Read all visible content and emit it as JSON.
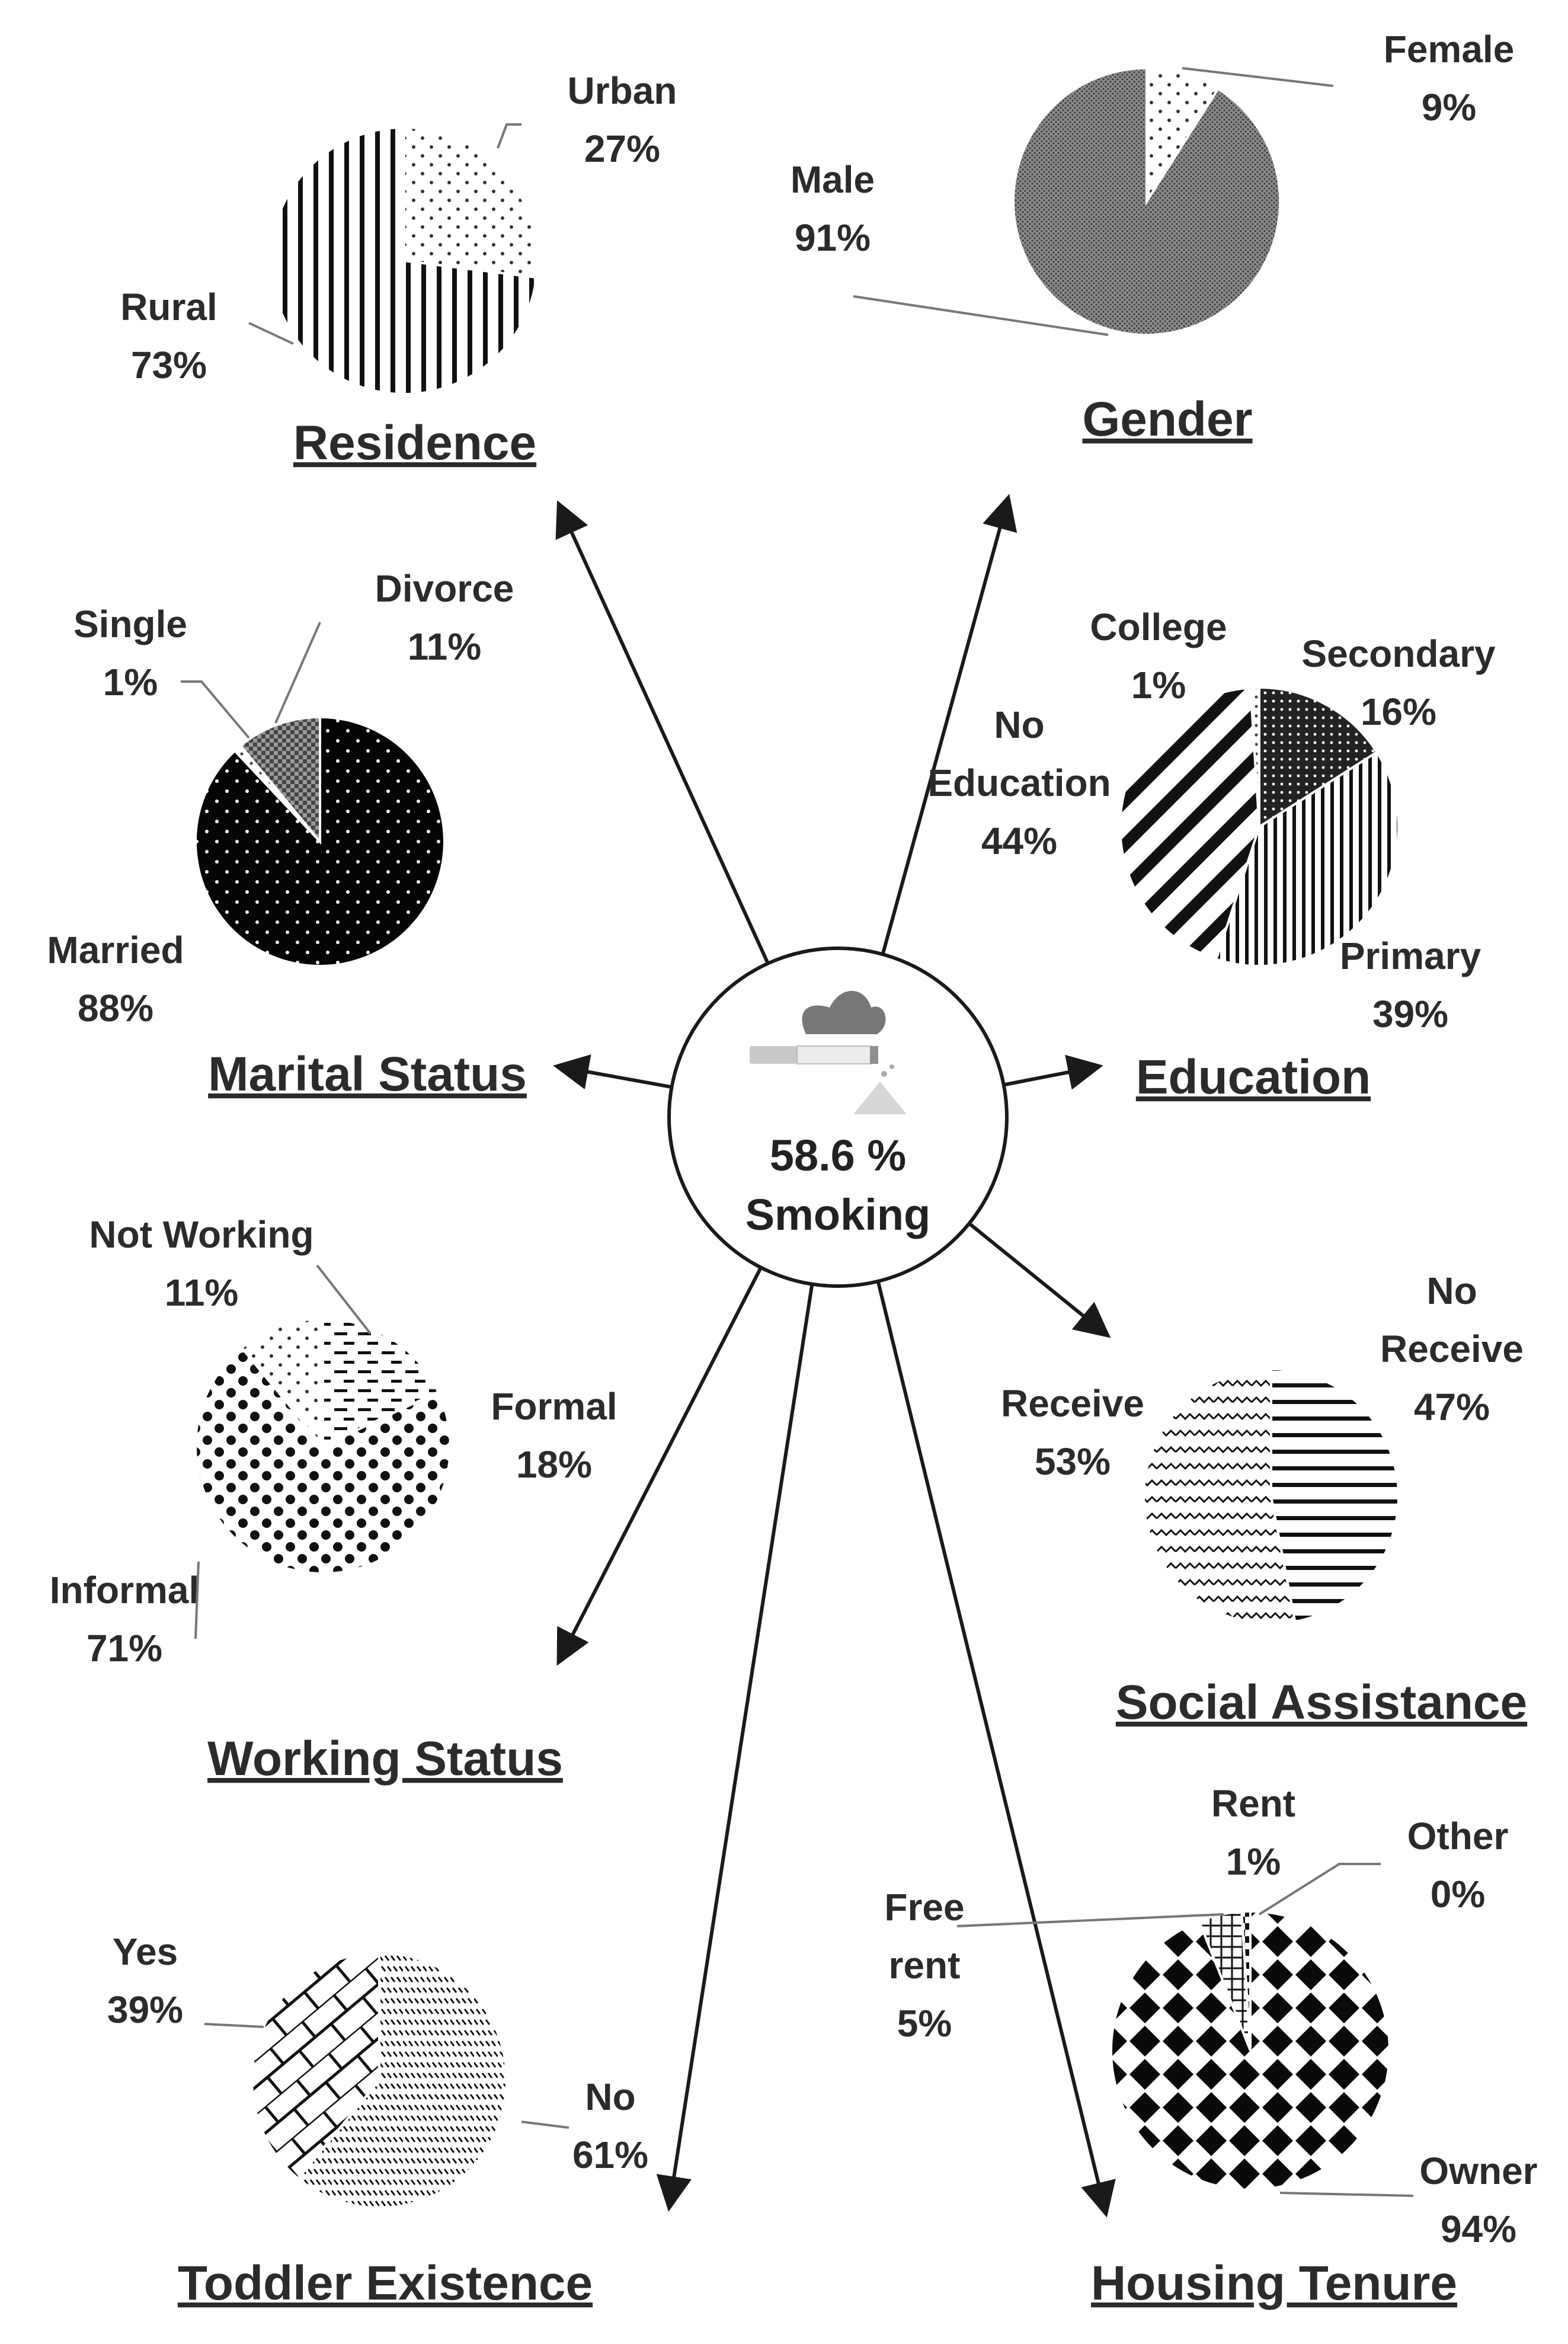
{
  "center": {
    "value": "58.6 %",
    "label": "Smoking",
    "icon": "cigarette-icon"
  },
  "chart_data": [
    {
      "type": "pie",
      "title": "Residence",
      "slices": [
        {
          "label": "Urban",
          "value": 27,
          "text": "27%"
        },
        {
          "label": "Rural",
          "value": 73,
          "text": "73%"
        }
      ]
    },
    {
      "type": "pie",
      "title": "Gender",
      "slices": [
        {
          "label": "Female",
          "value": 9,
          "text": "9%"
        },
        {
          "label": "Male",
          "value": 91,
          "text": "91%"
        }
      ]
    },
    {
      "type": "pie",
      "title": "Marital Status",
      "slices": [
        {
          "label": "Married",
          "value": 88,
          "text": "88%"
        },
        {
          "label": "Single",
          "value": 1,
          "text": "1%"
        },
        {
          "label": "Divorce",
          "value": 11,
          "text": "11%"
        }
      ]
    },
    {
      "type": "pie",
      "title": "Education",
      "slices": [
        {
          "label": "Secondary",
          "value": 16,
          "text": "16%"
        },
        {
          "label": "Primary",
          "value": 39,
          "text": "39%"
        },
        {
          "label": "No Education",
          "value": 44,
          "text": "44%"
        },
        {
          "label": "College",
          "value": 1,
          "text": "1%"
        }
      ]
    },
    {
      "type": "pie",
      "title": "Working Status",
      "slices": [
        {
          "label": "Formal",
          "value": 18,
          "text": "18%"
        },
        {
          "label": "Informal",
          "value": 71,
          "text": "71%"
        },
        {
          "label": "Not Working",
          "value": 11,
          "text": "11%"
        }
      ]
    },
    {
      "type": "pie",
      "title": "Social Assistance",
      "slices": [
        {
          "label": "No Receive",
          "value": 47,
          "text": "47%"
        },
        {
          "label": "Receive",
          "value": 53,
          "text": "53%"
        }
      ]
    },
    {
      "type": "pie",
      "title": "Toddler Existence",
      "slices": [
        {
          "label": "No",
          "value": 61,
          "text": "61%"
        },
        {
          "label": "Yes",
          "value": 39,
          "text": "39%"
        }
      ]
    },
    {
      "type": "pie",
      "title": "Housing Tenure",
      "slices": [
        {
          "label": "Other",
          "value": 0,
          "text": "0%"
        },
        {
          "label": "Owner",
          "value": 94,
          "text": "94%"
        },
        {
          "label": "Free rent",
          "value": 5,
          "text": "5%"
        },
        {
          "label": "Rent",
          "value": 1,
          "text": "1%"
        }
      ]
    }
  ]
}
